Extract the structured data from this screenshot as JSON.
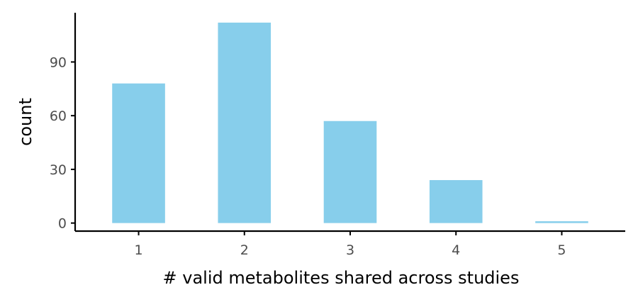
{
  "chart_data": {
    "type": "bar",
    "title": "",
    "xlabel": "# valid metabolites shared across studies",
    "ylabel": "count",
    "categories": [
      "1",
      "2",
      "3",
      "4",
      "5"
    ],
    "values": [
      78,
      112,
      57,
      24,
      1
    ],
    "ylim": [
      -4.5,
      117.5
    ],
    "xlim": [
      0.4,
      5.6
    ],
    "yticks": [
      0,
      30,
      60,
      90
    ],
    "ytick_labels": [
      "0",
      "30",
      "60",
      "90"
    ],
    "bar_color": "#87ceeb",
    "grid": false,
    "legend": "none"
  }
}
